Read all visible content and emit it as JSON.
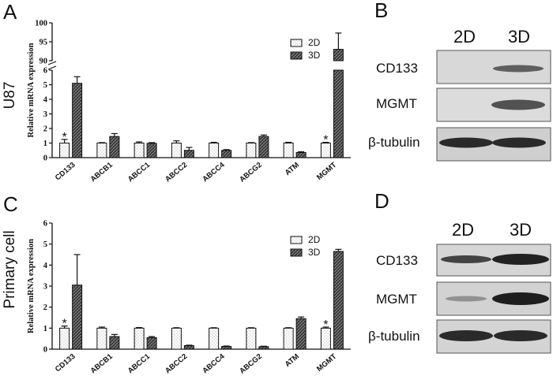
{
  "panels": {
    "A": {
      "letter": "A",
      "row_title": "U87"
    },
    "B": {
      "letter": "B"
    },
    "C": {
      "letter": "C",
      "row_title": "Primary cell"
    },
    "D": {
      "letter": "D"
    }
  },
  "chart_data": [
    {
      "type": "bar",
      "panel": "A",
      "ylabel": "Relative mRNA expression",
      "categories": [
        "CD133",
        "ABCB1",
        "ABCC1",
        "ABCC2",
        "ABCC4",
        "ABCG2",
        "ATM",
        "MGMT"
      ],
      "series": [
        {
          "name": "2D",
          "values": [
            1.0,
            1.0,
            1.0,
            1.0,
            1.0,
            1.0,
            1.0,
            1.0
          ],
          "errors": [
            0.25,
            0.03,
            0.08,
            0.15,
            0.05,
            0.03,
            0.05,
            0.05
          ]
        },
        {
          "name": "3D",
          "values": [
            5.1,
            1.45,
            0.98,
            0.5,
            0.5,
            1.45,
            0.35,
            93.0
          ],
          "errors": [
            0.45,
            0.2,
            0.05,
            0.2,
            0.05,
            0.1,
            0.05,
            4.3
          ]
        }
      ],
      "axis_break": {
        "lower_range": [
          0,
          6
        ],
        "upper_range": [
          90,
          100
        ]
      },
      "yticks_lower": [
        "0",
        "1",
        "2",
        "3",
        "4",
        "5",
        "6"
      ],
      "yticks_upper": [
        "90",
        "95",
        "100"
      ],
      "significance_marker": "*",
      "significant_categories": [
        "CD133",
        "MGMT"
      ],
      "legend_position": "top-right",
      "series_colors": {
        "2D": "#ffffff",
        "3D": "#3a3a3a"
      }
    },
    {
      "type": "bar",
      "panel": "C",
      "ylabel": "Relative mRNA expression",
      "categories": [
        "CD133",
        "ABCB1",
        "ABCC1",
        "ABCC2",
        "ABCC4",
        "ABCG2",
        "ATM",
        "MGMT"
      ],
      "series": [
        {
          "name": "2D",
          "values": [
            1.0,
            1.0,
            1.0,
            1.0,
            1.0,
            1.0,
            1.0,
            1.0
          ],
          "errors": [
            0.1,
            0.05,
            0.03,
            0.02,
            0.02,
            0.02,
            0.02,
            0.05
          ]
        },
        {
          "name": "3D",
          "values": [
            3.05,
            0.6,
            0.55,
            0.17,
            0.13,
            0.12,
            1.45,
            4.65
          ],
          "errors": [
            1.45,
            0.1,
            0.05,
            0.02,
            0.02,
            0.02,
            0.08,
            0.1
          ]
        }
      ],
      "ylim": [
        0,
        6
      ],
      "yticks": [
        "0",
        "1",
        "2",
        "3",
        "4",
        "5",
        "6"
      ],
      "significance_marker": "*",
      "significant_categories": [
        "CD133",
        "MGMT"
      ],
      "legend_position": "top-right",
      "series_colors": {
        "2D": "#ffffff",
        "3D": "#3a3a3a"
      }
    }
  ],
  "blots": {
    "B": {
      "columns": [
        "2D",
        "3D"
      ],
      "rows": [
        "CD133",
        "MGMT",
        "β-tubulin"
      ]
    },
    "D": {
      "columns": [
        "2D",
        "3D"
      ],
      "rows": [
        "CD133",
        "MGMT",
        "β-tubulin"
      ]
    }
  }
}
